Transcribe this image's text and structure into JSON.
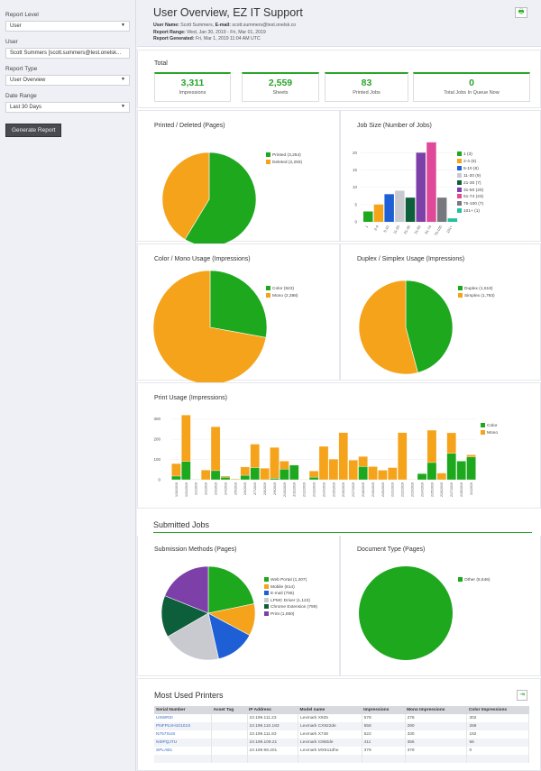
{
  "sidebar": {
    "report_level_label": "Report Level",
    "report_level": "User",
    "user_label": "User",
    "user": "Scott Summers [scott.summers@test.onelsk...",
    "report_type_label": "Report Type",
    "report_type": "User Overview",
    "date_range_label": "Date Range",
    "date_range": "Last 30 Days",
    "generate_button": "Generate Report"
  },
  "header": {
    "title": "User Overview, EZ IT Support",
    "user_name_label": "User Name:",
    "user_name": "Scott Summers,",
    "email_label": "E-mail:",
    "email": "scott.summers@test.onelsk.co",
    "range_label": "Report Range:",
    "range": "Wed, Jan 30, 2019 - Fri, Mar 01, 2019",
    "generated_label": "Report Generated:",
    "generated": "Fri, Mar 1, 2019 11:04 AM UTC",
    "print_icon": "printer-icon"
  },
  "total": {
    "title": "Total",
    "cards": [
      {
        "value": "3,311",
        "label": "Impressions"
      },
      {
        "value": "2,559",
        "label": "Sheets"
      },
      {
        "value": "83",
        "label": "Printed Jobs"
      },
      {
        "value": "0",
        "label": "Total Jobs In Queue Now"
      }
    ]
  },
  "chart_data": [
    {
      "id": "printed",
      "type": "pie",
      "title": "Printed / Deleted (Pages)",
      "slices": [
        {
          "label": "Printed (3,254)",
          "value": 3254,
          "color": "#1ea81e"
        },
        {
          "label": "Deleted (2,293)",
          "value": 2293,
          "color": "#f5a31a"
        }
      ]
    },
    {
      "id": "jobsize",
      "type": "bar",
      "title": "Job Size (Number of Jobs)",
      "categories": [
        "1",
        "2-4",
        "5-10",
        "11-20",
        "21-30",
        "31-50",
        "51-74",
        "75-100",
        "101+"
      ],
      "legend": [
        "1 (3)",
        "2-4 (5)",
        "5-10 (8)",
        "11-20 (9)",
        "21-30 (7)",
        "31-50 (20)",
        "51-74 (23)",
        "75-100 (7)",
        "101+ (1)"
      ],
      "values": [
        3,
        5,
        8,
        9,
        7,
        20,
        23,
        7,
        1
      ],
      "colors": [
        "#1ea81e",
        "#f5a31a",
        "#1f5fd6",
        "#c9c9d0",
        "#0d5e3a",
        "#7d3fa8",
        "#e0499a",
        "#77777e",
        "#22c0a0"
      ],
      "yticks": [
        "0",
        "5",
        "10",
        "15",
        "20"
      ],
      "ylim": [
        0,
        24
      ]
    },
    {
      "id": "colormono",
      "type": "pie",
      "title": "Color / Mono Usage (Impressions)",
      "slices": [
        {
          "label": "Color (923)",
          "value": 923,
          "color": "#1ea81e"
        },
        {
          "label": "Mono (2,388)",
          "value": 2388,
          "color": "#f5a31a"
        }
      ]
    },
    {
      "id": "duplex",
      "type": "pie",
      "title": "Duplex / Simplex Usage (Impressions)",
      "slices": [
        {
          "label": "Duplex (1,518)",
          "value": 1518,
          "color": "#1ea81e"
        },
        {
          "label": "Simplex (1,793)",
          "value": 1793,
          "color": "#f5a31a"
        }
      ]
    },
    {
      "id": "usage",
      "type": "bar",
      "stacked": true,
      "title": "Print Usage (Impressions)",
      "categories": [
        "1/30/2019",
        "1/31/2019",
        "2/1/2019",
        "2/2/2019",
        "2/3/2019",
        "2/4/2019",
        "2/5/2019",
        "2/6/2019",
        "2/7/2019",
        "2/8/2019",
        "2/9/2019",
        "2/10/2019",
        "2/11/2019",
        "2/12/2019",
        "2/13/2019",
        "2/14/2019",
        "2/15/2019",
        "2/16/2019",
        "2/17/2019",
        "2/18/2019",
        "2/19/2019",
        "2/20/2019",
        "2/21/2019",
        "2/22/2019",
        "2/23/2019",
        "2/24/2019",
        "2/25/2019",
        "2/26/2019",
        "2/27/2019",
        "2/28/2019",
        "3/1/2019"
      ],
      "series": [
        {
          "name": "Color",
          "color": "#1ea81e",
          "values": [
            18,
            90,
            2,
            0,
            45,
            12,
            2,
            22,
            60,
            0,
            7,
            52,
            72,
            0,
            13,
            0,
            0,
            0,
            0,
            65,
            0,
            0,
            0,
            0,
            0,
            30,
            85,
            0,
            130,
            92,
            113
          ]
        },
        {
          "name": "Mono",
          "color": "#f5a31a",
          "values": [
            62,
            230,
            1,
            48,
            217,
            6,
            3,
            41,
            116,
            57,
            153,
            40,
            0,
            2,
            30,
            165,
            102,
            233,
            97,
            50,
            65,
            47,
            60,
            233,
            2,
            0,
            160,
            33,
            102,
            0,
            10
          ]
        }
      ],
      "yticks": [
        "0",
        "100",
        "200",
        "300"
      ],
      "ylim": [
        0,
        330
      ]
    },
    {
      "id": "submission",
      "type": "pie",
      "title": "Submission Methods (Pages)",
      "slices": [
        {
          "label": "Web Portal (1,207)",
          "value": 1207,
          "color": "#1ea81e"
        },
        {
          "label": "Mobile (614)",
          "value": 614,
          "color": "#f5a31a"
        },
        {
          "label": "E-mail (756)",
          "value": 756,
          "color": "#1f5fd6"
        },
        {
          "label": "LPMC Driver (1,122)",
          "value": 1122,
          "color": "#c9c9d0"
        },
        {
          "label": "Chrome Extension (799)",
          "value": 799,
          "color": "#0d5e3a"
        },
        {
          "label": "Print (1,050)",
          "value": 1050,
          "color": "#7d3fa8"
        }
      ]
    },
    {
      "id": "doctype",
      "type": "pie",
      "title": "Document Type (Pages)",
      "slices": [
        {
          "label": "Other (5,546)",
          "value": 5546,
          "color": "#1ea81e"
        }
      ]
    }
  ],
  "submitted": {
    "title": "Submitted Jobs"
  },
  "printers": {
    "title": "Most Used Printers",
    "export_icon": "export-icon",
    "columns": [
      "Serial Number",
      "Asset Tag",
      "IP Address",
      "Model name",
      "Impressions",
      "Mono Impressions",
      "Color Impressions"
    ],
    "rows": [
      [
        "USWR2I",
        "",
        "10.199.111.23",
        "Lexmark X925",
        "578",
        "276",
        "302"
      ],
      [
        "PNFPLVH10101S",
        "",
        "10.199.110.183",
        "Lexmark CX922de",
        "558",
        "290",
        "268"
      ],
      [
        "N757SUS",
        "",
        "10.199.111.93",
        "Lexmark X748",
        "522",
        "330",
        "192"
      ],
      [
        "NI0PQJTU",
        "",
        "10.199.109.21",
        "Lexmark C950de",
        "411",
        "355",
        "56"
      ],
      [
        "SPLAB1",
        "",
        "10.199.98.201",
        "Lexmark MX511dhe",
        "379",
        "379",
        "0"
      ]
    ]
  }
}
